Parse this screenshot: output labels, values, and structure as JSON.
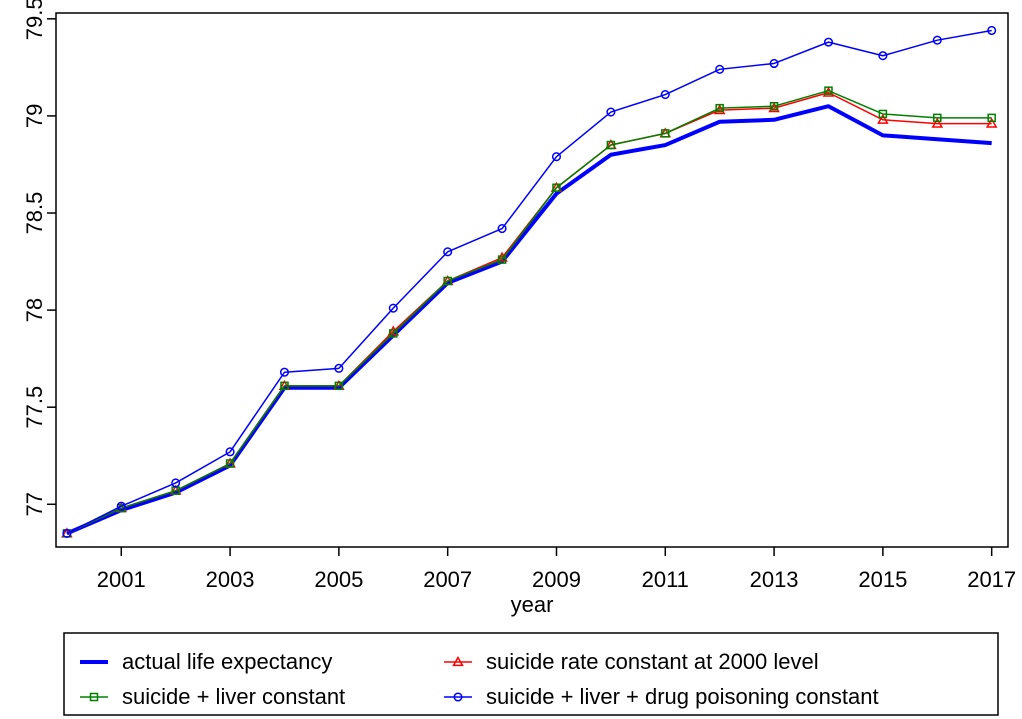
{
  "chart_data": {
    "type": "line",
    "title": "",
    "xlabel": "year",
    "ylabel": "",
    "x": [
      2000,
      2001,
      2002,
      2003,
      2004,
      2005,
      2006,
      2007,
      2008,
      2009,
      2010,
      2011,
      2012,
      2013,
      2014,
      2015,
      2016,
      2017
    ],
    "x_ticks": [
      2001,
      2003,
      2005,
      2007,
      2009,
      2011,
      2013,
      2015,
      2017
    ],
    "x_tick_labels": [
      "2001",
      "2003",
      "2005",
      "2007",
      "2009",
      "2011",
      "2013",
      "2015",
      "2017"
    ],
    "y_ticks": [
      77,
      77.5,
      78,
      78.5,
      79,
      79.5
    ],
    "y_tick_labels": [
      "77",
      "77.5",
      "78",
      "78.5",
      "79",
      "79.5"
    ],
    "xlim": [
      1999.8,
      2017.3
    ],
    "ylim": [
      76.78,
      79.53
    ],
    "grid": false,
    "legend_position": "bottom",
    "series": [
      {
        "name": "actual life expectancy",
        "color": "#0000ff",
        "marker": "none",
        "line": "thick",
        "values": [
          76.85,
          76.97,
          77.06,
          77.2,
          77.6,
          77.6,
          77.87,
          78.14,
          78.25,
          78.6,
          78.8,
          78.85,
          78.97,
          78.98,
          79.05,
          78.9,
          78.88,
          78.86
        ]
      },
      {
        "name": "suicide rate constant at 2000 level",
        "color": "#ff0000",
        "marker": "triangle",
        "line": "thin",
        "values": [
          76.85,
          76.98,
          77.07,
          77.21,
          77.61,
          77.61,
          77.89,
          78.15,
          78.27,
          78.63,
          78.85,
          78.91,
          79.03,
          79.04,
          79.12,
          78.98,
          78.96,
          78.96
        ]
      },
      {
        "name": "suicide + liver constant",
        "color": "#008000",
        "marker": "square",
        "line": "thin",
        "values": [
          76.85,
          76.98,
          77.07,
          77.21,
          77.61,
          77.61,
          77.88,
          78.15,
          78.26,
          78.63,
          78.85,
          78.91,
          79.04,
          79.05,
          79.13,
          79.01,
          78.99,
          78.99
        ]
      },
      {
        "name": "suicide + liver + drug poisoning constant",
        "color": "#0000ff",
        "marker": "circle",
        "line": "thin",
        "values": [
          76.85,
          76.99,
          77.11,
          77.27,
          77.68,
          77.7,
          78.01,
          78.3,
          78.42,
          78.79,
          79.02,
          79.11,
          79.24,
          79.27,
          79.38,
          79.31,
          79.39,
          79.44
        ]
      }
    ],
    "legend_order": [
      0,
      1,
      2,
      3
    ]
  }
}
